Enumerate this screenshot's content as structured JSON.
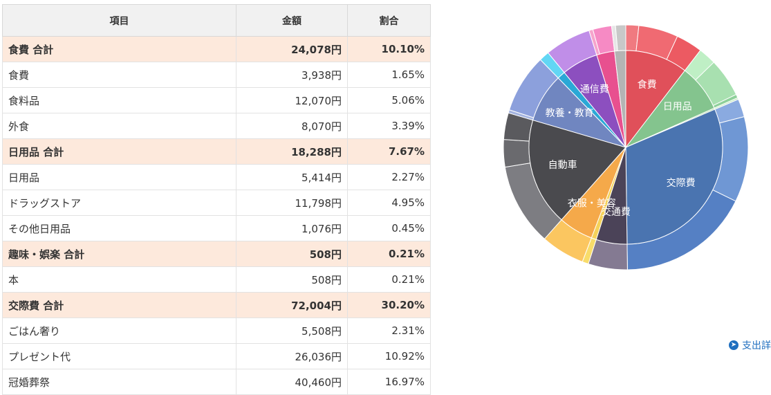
{
  "table": {
    "headers": [
      "項目",
      "金額",
      "割合"
    ],
    "rows": [
      {
        "item": "食費 合計",
        "amount": "24,078円",
        "ratio": "10.10%",
        "total": true
      },
      {
        "item": "食費",
        "amount": "3,938円",
        "ratio": "1.65%",
        "total": false
      },
      {
        "item": "食料品",
        "amount": "12,070円",
        "ratio": "5.06%",
        "total": false
      },
      {
        "item": "外食",
        "amount": "8,070円",
        "ratio": "3.39%",
        "total": false
      },
      {
        "item": "日用品 合計",
        "amount": "18,288円",
        "ratio": "7.67%",
        "total": true
      },
      {
        "item": "日用品",
        "amount": "5,414円",
        "ratio": "2.27%",
        "total": false
      },
      {
        "item": "ドラッグストア",
        "amount": "11,798円",
        "ratio": "4.95%",
        "total": false
      },
      {
        "item": "その他日用品",
        "amount": "1,076円",
        "ratio": "0.45%",
        "total": false
      },
      {
        "item": "趣味・娯楽 合計",
        "amount": "508円",
        "ratio": "0.21%",
        "total": true
      },
      {
        "item": "本",
        "amount": "508円",
        "ratio": "0.21%",
        "total": false
      },
      {
        "item": "交際費 合計",
        "amount": "72,004円",
        "ratio": "30.20%",
        "total": true
      },
      {
        "item": "ごはん奢り",
        "amount": "5,508円",
        "ratio": "2.31%",
        "total": false
      },
      {
        "item": "プレゼント代",
        "amount": "26,036円",
        "ratio": "10.92%",
        "total": false
      },
      {
        "item": "冠婚葬祭",
        "amount": "40,460円",
        "ratio": "16.97%",
        "total": false
      }
    ]
  },
  "chart_data": {
    "type": "pie",
    "inner": [
      {
        "label": "食費",
        "value": 10.1,
        "color": "#e0505a"
      },
      {
        "label": "日用品",
        "value": 7.67,
        "color": "#84c48e"
      },
      {
        "label": "",
        "value": 0.21,
        "color": "#a8d4a0"
      },
      {
        "label": "交際費",
        "value": 30.2,
        "color": "#4a74b0"
      },
      {
        "label": "交通費",
        "value": 5.0,
        "color": "#4b4358"
      },
      {
        "label": "",
        "value": 0.8,
        "color": "#f5d25a"
      },
      {
        "label": "衣服・美容",
        "value": 5.6,
        "color": "#f5a94a"
      },
      {
        "label": "自動車",
        "value": 17.4,
        "color": "#4a4a4e"
      },
      {
        "label": "教養・教育",
        "value": 7.9,
        "color": "#7086c0"
      },
      {
        "label": "",
        "value": 1.3,
        "color": "#2aa8d6"
      },
      {
        "label": "通信費",
        "value": 5.9,
        "color": "#8c4fbf"
      },
      {
        "label": "",
        "value": 2.9,
        "color": "#e8508f"
      },
      {
        "label": "",
        "value": 1.8,
        "color": "#b4b4b4"
      }
    ],
    "outer": [
      {
        "value": 1.65,
        "color": "#f07a80"
      },
      {
        "value": 5.06,
        "color": "#f06a72"
      },
      {
        "value": 3.39,
        "color": "#ec5a62"
      },
      {
        "value": 2.27,
        "color": "#bfefc5"
      },
      {
        "value": 4.95,
        "color": "#a8e0b0"
      },
      {
        "value": 0.45,
        "color": "#8ed09a"
      },
      {
        "value": 0.21,
        "color": "#c6e8c0"
      },
      {
        "value": 2.31,
        "color": "#8aaae0"
      },
      {
        "value": 10.92,
        "color": "#6f97d4"
      },
      {
        "value": 16.97,
        "color": "#5580c4"
      },
      {
        "value": 5.0,
        "color": "#847a92"
      },
      {
        "value": 0.8,
        "color": "#f8dc6a"
      },
      {
        "value": 5.6,
        "color": "#fbc660"
      },
      {
        "value": 10.5,
        "color": "#7d7d82"
      },
      {
        "value": 3.5,
        "color": "#6a6a6e"
      },
      {
        "value": 3.4,
        "color": "#5a5a5e"
      },
      {
        "value": 0.4,
        "color": "#a4b4e0"
      },
      {
        "value": 7.5,
        "color": "#8ca0dc"
      },
      {
        "value": 1.3,
        "color": "#62d6f4"
      },
      {
        "value": 5.9,
        "color": "#c08ee8"
      },
      {
        "value": 0.5,
        "color": "#f6a4cc"
      },
      {
        "value": 2.4,
        "color": "#f68ac4"
      },
      {
        "value": 0.5,
        "color": "#e6e6e6"
      },
      {
        "value": 1.3,
        "color": "#c8c8c8"
      }
    ]
  },
  "link": {
    "icon": "arrow-right-circle-icon",
    "text": "支出詳"
  }
}
